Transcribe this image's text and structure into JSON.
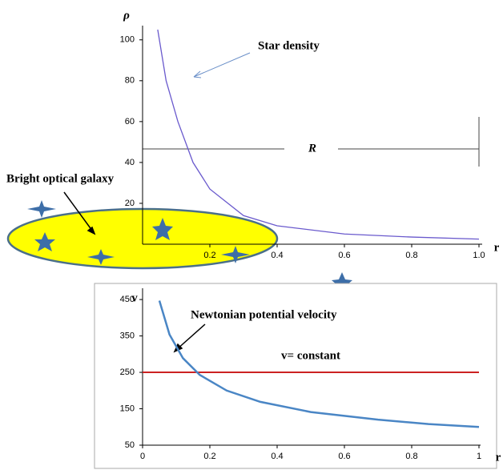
{
  "chart_data": [
    {
      "type": "line",
      "y_label": "ρ",
      "x_label": "r",
      "x": [
        0.045,
        0.07,
        0.105,
        0.15,
        0.2,
        0.3,
        0.4,
        0.6,
        0.8,
        1.0
      ],
      "series": [
        {
          "name": "Star density",
          "color": "#6a5acd",
          "values": [
            105,
            80,
            60,
            40,
            27,
            14,
            9,
            5,
            3.5,
            2.5
          ]
        }
      ],
      "xlim": [
        0,
        1.0
      ],
      "ylim": [
        0,
        105
      ],
      "xticks": [
        0.2,
        0.4,
        0.6,
        {
          "value": 1,
          "label": "1.0"
        },
        0.8
      ],
      "yticks": [
        20,
        40,
        60,
        80,
        100
      ],
      "annotations": [
        "R",
        "Bright optical galaxy"
      ]
    },
    {
      "type": "line",
      "y_label": "v",
      "x_label": "r",
      "x": [
        0.05,
        0.08,
        0.12,
        0.17,
        0.25,
        0.35,
        0.5,
        0.7,
        0.85,
        1.0
      ],
      "series": [
        {
          "name": "Newtonian potential velocity",
          "color": "#4a86c5",
          "values": [
            447,
            354,
            289,
            243,
            200,
            169,
            141,
            120,
            108,
            100
          ]
        }
      ],
      "reference_line": {
        "value": 250,
        "label": "v= constant",
        "color": "#cc2222"
      },
      "xlim": [
        0,
        1
      ],
      "ylim": [
        50,
        470
      ],
      "xticks": [
        0,
        0.2,
        0.4,
        0.6,
        0.8,
        1
      ],
      "yticks": [
        50,
        150,
        250,
        350,
        450
      ]
    }
  ]
}
